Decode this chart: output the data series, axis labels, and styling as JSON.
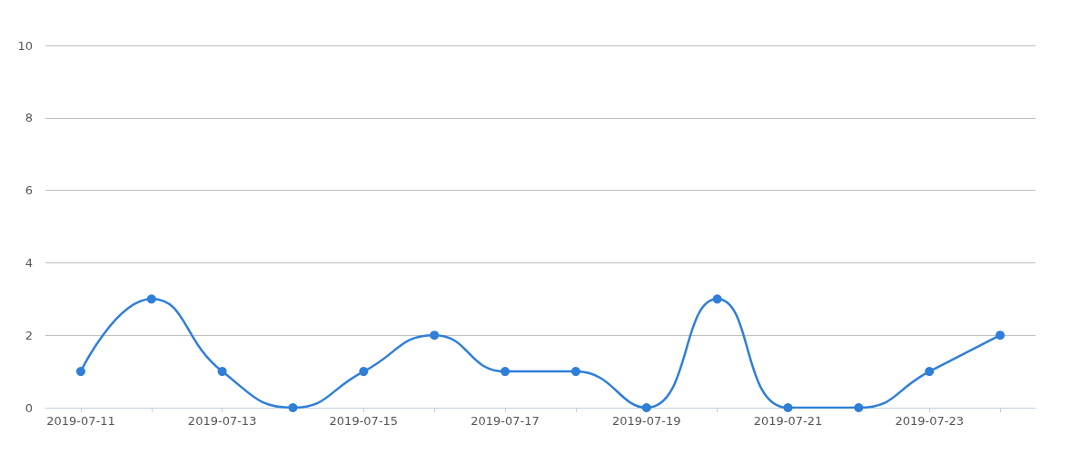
{
  "chart_data": {
    "type": "line",
    "categories": [
      "2019-07-11",
      null,
      "2019-07-13",
      null,
      "2019-07-15",
      null,
      "2019-07-17",
      null,
      "2019-07-19",
      null,
      "2019-07-21",
      null,
      "2019-07-23",
      null
    ],
    "series": [
      {
        "color": "#2f7ed8",
        "values": [
          1,
          3,
          1,
          0,
          1,
          2,
          1,
          1,
          0,
          3,
          0,
          0,
          1,
          2
        ]
      }
    ],
    "ylim": [
      0,
      10
    ],
    "yticks": [
      0,
      2,
      4,
      6,
      8,
      10
    ],
    "grid": "y",
    "marker": "circle",
    "line_style": "solid"
  }
}
